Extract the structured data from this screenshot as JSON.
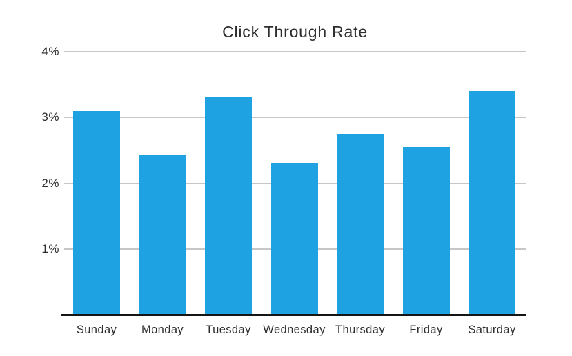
{
  "chart_data": {
    "type": "bar",
    "title": "Click Through Rate",
    "categories": [
      "Sunday",
      "Monday",
      "Tuesday",
      "Wednesday",
      "Thursday",
      "Friday",
      "Saturday"
    ],
    "values": [
      3.1,
      2.43,
      3.32,
      2.31,
      2.75,
      2.55,
      3.4
    ],
    "unit": "%",
    "xlabel": "",
    "ylabel": "",
    "ylim": [
      0,
      4
    ],
    "yticks": [
      {
        "value": 1,
        "label": "1%"
      },
      {
        "value": 2,
        "label": "2%"
      },
      {
        "value": 3,
        "label": "3%"
      },
      {
        "value": 4,
        "label": "4%"
      }
    ],
    "grid": "horizontal",
    "legend_position": "none",
    "colors": {
      "bar": "#1EA2E2",
      "gridline": "#c6c6c6",
      "axis": "#151515",
      "text": "#2e2e2e",
      "background": "#ffffff"
    }
  }
}
